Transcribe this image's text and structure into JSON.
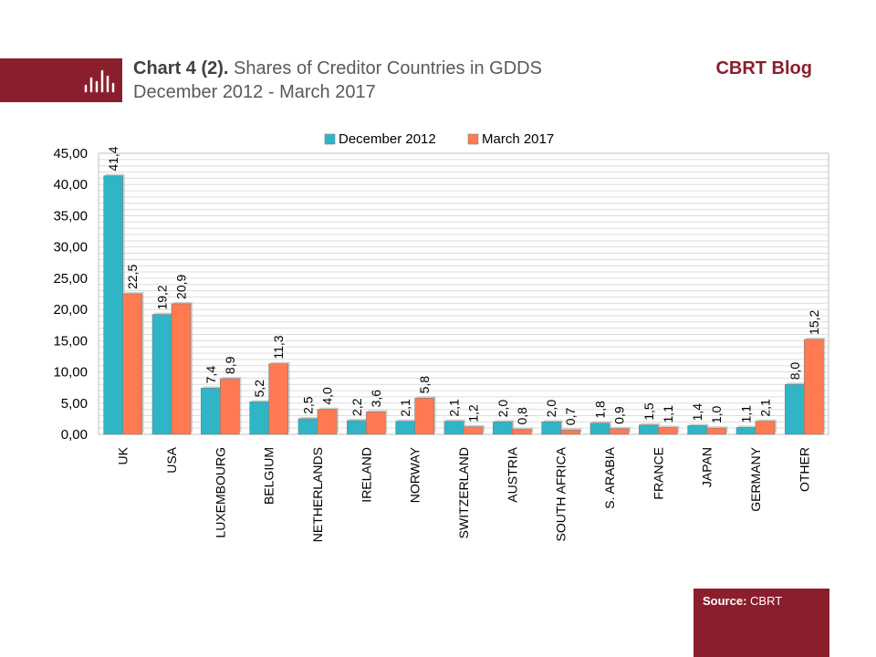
{
  "header": {
    "title_bold": "Chart 4 (2).",
    "title_rest": " Shares of Creditor Countries in GDDS",
    "subtitle": "December 2012 - March 2017",
    "brand": "CBRT Blog",
    "logo_icon": "bar-chart-icon"
  },
  "footer": {
    "source_label": "Source:",
    "source_value": " CBRT"
  },
  "colors": {
    "brand": "#8b1e2d",
    "series_dec_2012": "#2fb5c5",
    "series_mar_2017": "#ff7a50"
  },
  "chart_data": {
    "type": "bar",
    "title": "",
    "xlabel": "",
    "ylabel": "",
    "ylim": [
      0,
      45
    ],
    "yticks": [
      "0,00",
      "5,00",
      "10,00",
      "15,00",
      "20,00",
      "25,00",
      "30,00",
      "35,00",
      "40,00",
      "45,00"
    ],
    "grid": true,
    "legend_position": "top",
    "categories": [
      "UK",
      "USA",
      "LUXEMBOURG",
      "BELGIUM",
      "NETHERLANDS",
      "IRELAND",
      "NORWAY",
      "SWITZERLAND",
      "AUSTRIA",
      "SOUTH AFRICA",
      "S. ARABIA",
      "FRANCE",
      "JAPAN",
      "GERMANY",
      "OTHER"
    ],
    "series": [
      {
        "name": "December 2012",
        "color": "#2fb5c5",
        "values": [
          41.4,
          19.2,
          7.4,
          5.2,
          2.5,
          2.2,
          2.1,
          2.1,
          2.0,
          2.0,
          1.8,
          1.5,
          1.4,
          1.1,
          8.0
        ],
        "labels": [
          "41,4",
          "19,2",
          "7,4",
          "5,2",
          "2,5",
          "2,2",
          "2,1",
          "2,1",
          "2,0",
          "2,0",
          "1,8",
          "1,5",
          "1,4",
          "1,1",
          "8,0"
        ]
      },
      {
        "name": "March 2017",
        "color": "#ff7a50",
        "values": [
          22.5,
          20.9,
          8.9,
          11.3,
          4.0,
          3.6,
          5.8,
          1.2,
          0.8,
          0.7,
          0.9,
          1.1,
          1.0,
          2.1,
          15.2
        ],
        "labels": [
          "22,5",
          "20,9",
          "8,9",
          "11,3",
          "4,0",
          "3,6",
          "5,8",
          "1,2",
          "0,8",
          "0,7",
          "0,9",
          "1,1",
          "1,0",
          "2,1",
          "15,2"
        ]
      }
    ]
  }
}
